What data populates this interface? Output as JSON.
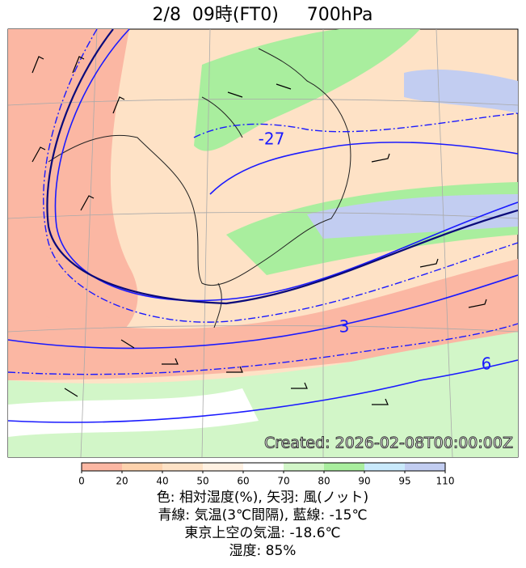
{
  "title": "2/8  09時(FT0)     700hPa",
  "map": {
    "contour_labels": [
      "-27",
      "3",
      "6"
    ],
    "created": "Created: 2026-02-08T00:00:00Z"
  },
  "colorbar": {
    "ticks": [
      0,
      20,
      40,
      50,
      60,
      70,
      80,
      90,
      95,
      110
    ],
    "colors": [
      "#fbb7a3",
      "#fdd2ad",
      "#fee2c6",
      "#fff1e2",
      "#ffffff",
      "#d2f6c8",
      "#a9ee9e",
      "#c9e9fb",
      "#c2cdf1"
    ]
  },
  "caption": [
    "色: 相対湿度(%),  矢羽: 風(ノット)",
    "青線: 気温(3℃間隔), 藍線: -15℃",
    "東京上空の気温: -18.6℃",
    "湿度: 85%"
  ]
}
